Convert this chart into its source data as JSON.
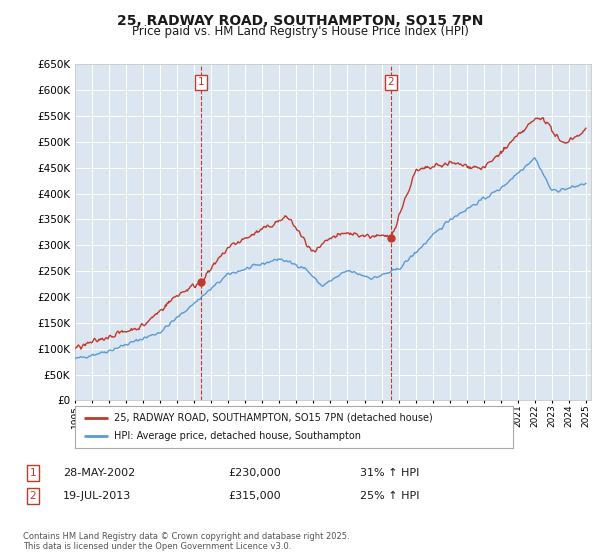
{
  "title": "25, RADWAY ROAD, SOUTHAMPTON, SO15 7PN",
  "subtitle": "Price paid vs. HM Land Registry's House Price Index (HPI)",
  "title_fontsize": 10,
  "subtitle_fontsize": 8.5,
  "background_color": "#ffffff",
  "plot_bg_color": "#dce6f1",
  "grid_color": "#ffffff",
  "ylim": [
    0,
    650000
  ],
  "yticks": [
    0,
    50000,
    100000,
    150000,
    200000,
    250000,
    300000,
    350000,
    400000,
    450000,
    500000,
    550000,
    600000,
    650000
  ],
  "hpi_color": "#5b9bd5",
  "price_color": "#c0392b",
  "dashed_line_color": "#c0392b",
  "annotation_box_color": "#c0392b",
  "sale1_year": 2002.4,
  "sale1_price": 230000,
  "sale1_label": "1",
  "sale1_date": "28-MAY-2002",
  "sale1_pct": "31%",
  "sale2_year": 2013.55,
  "sale2_price": 315000,
  "sale2_label": "2",
  "sale2_date": "19-JUL-2013",
  "sale2_pct": "25%",
  "legend_line1": "25, RADWAY ROAD, SOUTHAMPTON, SO15 7PN (detached house)",
  "legend_line2": "HPI: Average price, detached house, Southampton",
  "footnote": "Contains HM Land Registry data © Crown copyright and database right 2025.\nThis data is licensed under the Open Government Licence v3.0."
}
